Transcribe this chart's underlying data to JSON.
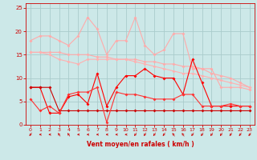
{
  "background_color": "#cce8e8",
  "grid_color": "#aacccc",
  "xlabel": "Vent moyen/en rafales ( km/h )",
  "xlabel_color": "#cc0000",
  "tick_color": "#cc0000",
  "ylim": [
    0,
    26
  ],
  "xlim": [
    -0.5,
    23.5
  ],
  "yticks": [
    0,
    5,
    10,
    15,
    20,
    25
  ],
  "xticks": [
    0,
    1,
    2,
    3,
    4,
    5,
    6,
    7,
    8,
    9,
    10,
    11,
    12,
    13,
    14,
    15,
    16,
    17,
    18,
    19,
    20,
    21,
    22,
    23
  ],
  "series": [
    {
      "x": [
        0,
        1,
        2,
        3,
        4,
        5,
        6,
        7,
        8,
        9,
        10,
        11,
        12,
        13,
        14,
        15,
        16,
        17,
        18,
        19,
        20,
        21,
        22,
        23
      ],
      "y": [
        18,
        19,
        19,
        18,
        17,
        19,
        23,
        20.5,
        15,
        18,
        18,
        23,
        17,
        15,
        16,
        19.5,
        19.5,
        12,
        12,
        12,
        8,
        8,
        8,
        7.5
      ],
      "color": "#ffaaaa",
      "linewidth": 0.8
    },
    {
      "x": [
        0,
        1,
        2,
        3,
        4,
        5,
        6,
        7,
        8,
        9,
        10,
        11,
        12,
        13,
        14,
        15,
        16,
        17,
        18,
        19,
        20,
        21,
        22,
        23
      ],
      "y": [
        15.5,
        15.5,
        15.5,
        15.5,
        15,
        15,
        15,
        14.5,
        14.5,
        14,
        14,
        14,
        13.5,
        13.5,
        13,
        13,
        12.5,
        12.5,
        12,
        11,
        10.5,
        10,
        9,
        8
      ],
      "color": "#ffaaaa",
      "linewidth": 0.8
    },
    {
      "x": [
        0,
        1,
        2,
        3,
        4,
        5,
        6,
        7,
        8,
        9,
        10,
        11,
        12,
        13,
        14,
        15,
        16,
        17,
        18,
        19,
        20,
        21,
        22,
        23
      ],
      "y": [
        15.5,
        15.5,
        15,
        14,
        13.5,
        13,
        14,
        14,
        14,
        14,
        14,
        13.5,
        13,
        12.5,
        12,
        11.5,
        11,
        11,
        10.5,
        10,
        9.5,
        9,
        8.5,
        8
      ],
      "color": "#ffb0b0",
      "linewidth": 0.8
    },
    {
      "x": [
        0,
        1,
        2,
        3,
        4,
        5,
        6,
        7,
        8,
        9,
        10,
        11,
        12,
        13,
        14,
        15,
        16,
        17,
        18,
        19,
        20,
        21,
        22,
        23
      ],
      "y": [
        8,
        8,
        2.5,
        2.5,
        6,
        6.5,
        4.5,
        11,
        4,
        8,
        10.5,
        10.5,
        12,
        10.5,
        10,
        10,
        6.5,
        14,
        9,
        4,
        4,
        4,
        4,
        4
      ],
      "color": "#ff0000",
      "linewidth": 0.8
    },
    {
      "x": [
        0,
        1,
        2,
        3,
        4,
        5,
        6,
        7,
        8,
        9,
        10,
        11,
        12,
        13,
        14,
        15,
        16,
        17,
        18,
        19,
        20,
        21,
        22,
        23
      ],
      "y": [
        8,
        8,
        8,
        3,
        3,
        3,
        3,
        3,
        3,
        3,
        3,
        3,
        3,
        3,
        3,
        3,
        3,
        3,
        3,
        3,
        3,
        3,
        3,
        3
      ],
      "color": "#cc0000",
      "linewidth": 0.8
    },
    {
      "x": [
        0,
        1,
        2,
        3,
        4,
        5,
        6,
        7,
        8,
        9,
        10,
        11,
        12,
        13,
        14,
        15,
        16,
        17,
        18,
        19,
        20,
        21,
        22,
        23
      ],
      "y": [
        5.5,
        3,
        4,
        2.5,
        6.5,
        7,
        7,
        8,
        0.5,
        7,
        6.5,
        6.5,
        6,
        5.5,
        5.5,
        5.5,
        6.5,
        6.5,
        4,
        4,
        4,
        4.5,
        4,
        4
      ],
      "color": "#ff3333",
      "linewidth": 0.8
    }
  ],
  "arrow_color": "#cc0000",
  "wind_dirs": [
    225,
    270,
    270,
    315,
    315,
    270,
    270,
    270,
    270,
    270,
    270,
    225,
    225,
    225,
    225,
    315,
    315,
    225,
    225,
    225,
    225,
    225,
    225,
    225
  ]
}
